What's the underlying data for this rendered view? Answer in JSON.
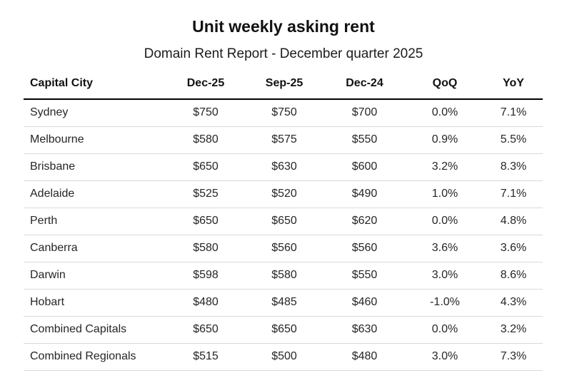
{
  "title": "Unit weekly asking rent",
  "subtitle": "Domain Rent Report - December quarter 2025",
  "colors": {
    "background": "#ffffff",
    "title_text": "#111111",
    "body_text": "#262626",
    "header_rule": "#000000",
    "row_divider": "#d9d9d9"
  },
  "chart_data": {
    "type": "table",
    "title": "Unit weekly asking rent",
    "subtitle": "Domain Rent Report - December quarter 2025",
    "columns": [
      "Capital City",
      "Dec-25",
      "Sep-25",
      "Dec-24",
      "QoQ",
      "YoY"
    ],
    "rows": [
      [
        "Sydney",
        "$750",
        "$750",
        "$700",
        "0.0%",
        "7.1%"
      ],
      [
        "Melbourne",
        "$580",
        "$575",
        "$550",
        "0.9%",
        "5.5%"
      ],
      [
        "Brisbane",
        "$650",
        "$630",
        "$600",
        "3.2%",
        "8.3%"
      ],
      [
        "Adelaide",
        "$525",
        "$520",
        "$490",
        "1.0%",
        "7.1%"
      ],
      [
        "Perth",
        "$650",
        "$650",
        "$620",
        "0.0%",
        "4.8%"
      ],
      [
        "Canberra",
        "$580",
        "$560",
        "$560",
        "3.6%",
        "3.6%"
      ],
      [
        "Darwin",
        "$598",
        "$580",
        "$550",
        "3.0%",
        "8.6%"
      ],
      [
        "Hobart",
        "$480",
        "$485",
        "$460",
        "-1.0%",
        "4.3%"
      ],
      [
        "Combined Capitals",
        "$650",
        "$650",
        "$630",
        "0.0%",
        "3.2%"
      ],
      [
        "Combined Regionals",
        "$515",
        "$500",
        "$480",
        "3.0%",
        "7.3%"
      ]
    ]
  }
}
